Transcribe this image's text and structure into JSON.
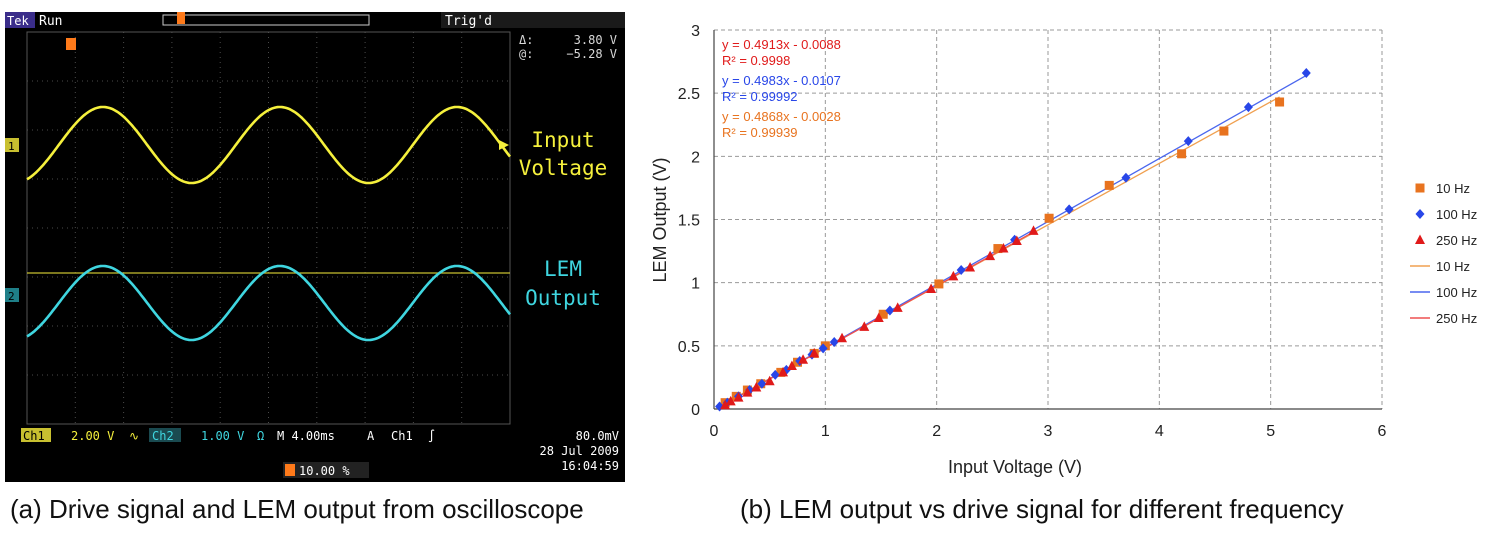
{
  "panel_a": {
    "status": "Run",
    "tek": "Tek",
    "trigger_state": "Trig'd",
    "delta_label": "Δ:",
    "delta_value": "3.80 V",
    "at_label": "@:",
    "at_value": "−5.28 V",
    "ch1_marker": "1",
    "ch2_marker": "2",
    "input_label_line1": "Input",
    "input_label_line2": "Voltage",
    "lem_label_line1": "LEM",
    "lem_label_line2": "Output",
    "ch1_tag": "Ch1",
    "ch1_scale": "2.00 V",
    "ch2_tag": "Ch2",
    "ch2_scale": "1.00 V",
    "ohm": "Ω",
    "timebase": "M 4.00ms",
    "trigger_mode": "A",
    "trigger_channel": "Ch1",
    "trigger_level": "80.0mV",
    "date": "28 Jul  2009",
    "time": "16:04:59",
    "trigger_position": "10.00 %",
    "colors": {
      "ch1": "#f5f03c",
      "ch2": "#3fd6e0",
      "trigger": "#ff7a1a",
      "grid": "#555555"
    }
  },
  "caption_a": "(a) Drive signal and LEM output from oscilloscope",
  "caption_b": "(b) LEM output vs drive signal for different frequency",
  "chart_data": {
    "type": "scatter",
    "xlabel": "Input Voltage (V)",
    "ylabel": "LEM Output (V)",
    "xlim": [
      0,
      6
    ],
    "ylim": [
      0,
      3
    ],
    "xticks": [
      0,
      1,
      2,
      3,
      4,
      5,
      6
    ],
    "yticks": [
      "0",
      "0.5",
      "1",
      "1.5",
      "2",
      "2.5",
      "3"
    ],
    "grid": true,
    "legend_position": "right",
    "series": [
      {
        "name": "10 Hz",
        "color": "#e8731f",
        "marker": "square",
        "x": [
          0.1,
          0.2,
          0.3,
          0.42,
          0.6,
          0.75,
          0.9,
          1.0,
          1.52,
          2.02,
          2.55,
          3.01,
          3.55,
          4.2,
          4.58,
          5.08
        ],
        "y": [
          0.05,
          0.1,
          0.15,
          0.2,
          0.29,
          0.37,
          0.44,
          0.5,
          0.75,
          0.99,
          1.27,
          1.51,
          1.77,
          2.02,
          2.2,
          2.43
        ]
      },
      {
        "name": "100 Hz",
        "color": "#2846e8",
        "marker": "diamond",
        "x": [
          0.05,
          0.12,
          0.22,
          0.32,
          0.43,
          0.55,
          0.65,
          0.77,
          0.88,
          0.98,
          1.08,
          1.58,
          2.22,
          2.7,
          3.19,
          3.7,
          4.26,
          4.8,
          5.32
        ],
        "y": [
          0.02,
          0.05,
          0.1,
          0.15,
          0.2,
          0.27,
          0.31,
          0.38,
          0.43,
          0.48,
          0.53,
          0.78,
          1.1,
          1.34,
          1.58,
          1.83,
          2.12,
          2.39,
          2.66
        ]
      },
      {
        "name": "250 Hz",
        "color": "#e01a1a",
        "marker": "triangle",
        "x": [
          0.1,
          0.15,
          0.22,
          0.3,
          0.38,
          0.5,
          0.62,
          0.7,
          0.8,
          0.9,
          1.15,
          1.35,
          1.48,
          1.65,
          1.95,
          2.15,
          2.3,
          2.48,
          2.6,
          2.72,
          2.87
        ],
        "y": [
          0.03,
          0.06,
          0.09,
          0.13,
          0.17,
          0.22,
          0.29,
          0.34,
          0.39,
          0.44,
          0.56,
          0.65,
          0.72,
          0.8,
          0.95,
          1.05,
          1.12,
          1.21,
          1.27,
          1.33,
          1.41
        ]
      }
    ],
    "trendlines": [
      {
        "name": "10 Hz",
        "color": "#f0a050",
        "slope": 0.4868,
        "intercept": -0.0028,
        "x_range": [
          0.1,
          5.08
        ],
        "equation": "y = 0.4868x - 0.0028",
        "r2": "R² = 0.99939",
        "label_color": "#e8731f"
      },
      {
        "name": "100 Hz",
        "color": "#4a66ee",
        "slope": 0.4983,
        "intercept": -0.0107,
        "x_range": [
          0.05,
          5.32
        ],
        "equation": "y = 0.4983x - 0.0107",
        "r2": "R² = 0.99992",
        "label_color": "#2846e8"
      },
      {
        "name": "250 Hz",
        "color": "#ee5050",
        "slope": 0.4913,
        "intercept": -0.0088,
        "x_range": [
          0.1,
          2.87
        ],
        "equation": "y = 0.4913x - 0.0088",
        "r2": "R² = 0.9998",
        "label_color": "#e01a1a"
      }
    ]
  }
}
